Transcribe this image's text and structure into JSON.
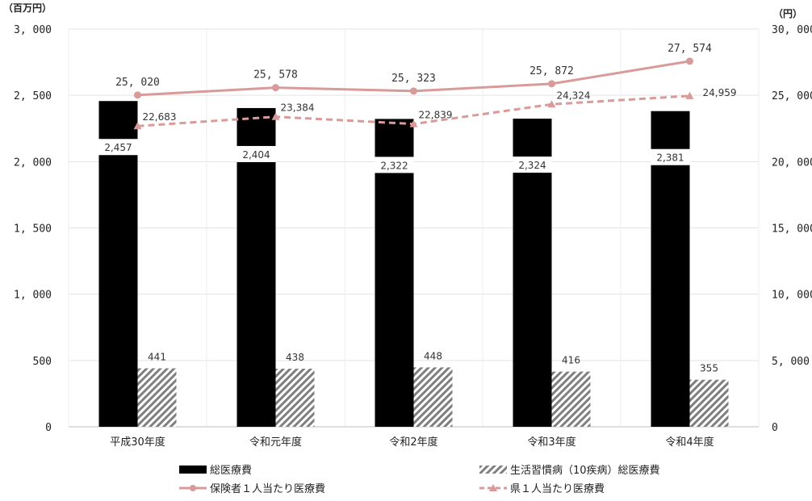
{
  "chart_data": {
    "type": "bar",
    "categories": [
      "平成30年度",
      "令和元年度",
      "令和2年度",
      "令和3年度",
      "令和4年度"
    ],
    "left_unit": "（百万円）",
    "right_unit": "（円）",
    "left_ticks": [
      "0",
      "500",
      "1, 000",
      "1, 500",
      "2, 000",
      "2, 500",
      "3, 000"
    ],
    "right_ticks": [
      "0",
      "5, 000",
      "10, 000",
      "15, 000",
      "20, 000",
      "25, 000",
      "30, 000"
    ],
    "left_ylim": [
      0,
      3000
    ],
    "right_ylim": [
      0,
      30000
    ],
    "grid": true,
    "legend_position": "bottom",
    "series": [
      {
        "name": "総医療費",
        "kind": "bar",
        "axis": "left",
        "color": "#000000",
        "values": [
          2457,
          2404,
          2322,
          2324,
          2381
        ],
        "labels": [
          "2,457",
          "2,404",
          "2,322",
          "2,324",
          "2,381"
        ]
      },
      {
        "name": "生活習慣病（10疾病）総医療費",
        "kind": "bar",
        "axis": "left",
        "color": "#888888",
        "pattern": "hatched",
        "values": [
          441,
          438,
          448,
          416,
          355
        ],
        "labels": [
          "441",
          "438",
          "448",
          "416",
          "355"
        ]
      },
      {
        "name": "保険者１人当たり医療費",
        "kind": "line",
        "axis": "right",
        "color": "#d99a9a",
        "marker": "circle",
        "values": [
          25020,
          25578,
          25323,
          25872,
          27574
        ],
        "labels": [
          "25, 020",
          "25, 578",
          "25, 323",
          "25, 872",
          "27, 574"
        ]
      },
      {
        "name": "県１人当たり医療費",
        "kind": "line",
        "axis": "right",
        "color": "#d99a9a",
        "dash": true,
        "marker": "triangle",
        "values": [
          22683,
          23384,
          22839,
          24324,
          24959
        ],
        "labels": [
          "22,683",
          "23,384",
          "22,839",
          "24,324",
          "24,959"
        ]
      }
    ]
  }
}
